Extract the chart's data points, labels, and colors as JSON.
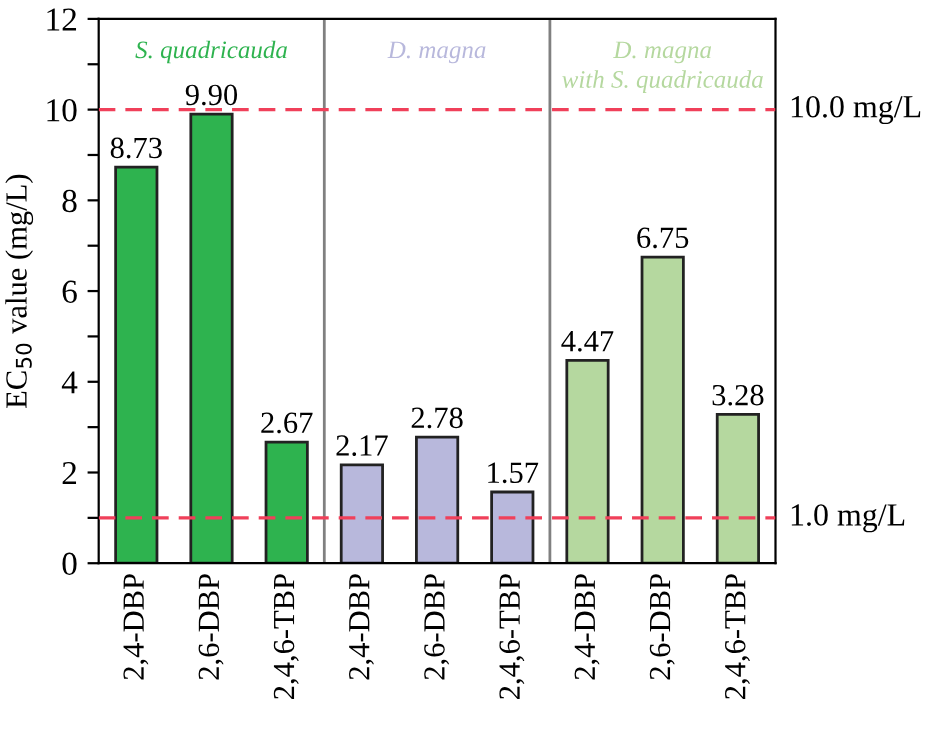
{
  "chart_data": {
    "type": "bar",
    "ylabel": "EC$_{50}$ value (mg/L)",
    "categories": [
      "2,4-DBP",
      "2,6-DBP",
      "2,4,6-TBP",
      "2,4-DBP",
      "2,6-DBP",
      "2,4,6-TBP",
      "2,4-DBP",
      "2,6-DBP",
      "2,4,6-TBP"
    ],
    "values": [
      8.73,
      9.9,
      2.67,
      2.17,
      2.78,
      1.57,
      4.47,
      6.75,
      3.28
    ],
    "value_labels": [
      "8.73",
      "9.90",
      "2.67",
      "2.17",
      "2.78",
      "1.57",
      "4.47",
      "6.75",
      "3.28"
    ],
    "colors": [
      "#2eb34f",
      "#2eb34f",
      "#2eb34f",
      "#b8b8dc",
      "#b8b8dc",
      "#b8b8dc",
      "#b5d89f",
      "#b5d89f",
      "#b5d89f"
    ],
    "ylim": [
      0,
      12
    ],
    "yticks": [
      0,
      {
        "value": 1,
        "label": null
      },
      2,
      {
        "value": 3,
        "label": null
      },
      4,
      {
        "value": 5,
        "label": null
      },
      6,
      {
        "value": 7,
        "label": null
      },
      8,
      {
        "value": 9,
        "label": null
      },
      10,
      {
        "value": 11,
        "label": null
      },
      12
    ],
    "ref_lines": [
      {
        "axis": "y",
        "value": 10,
        "label": "10.0 mg/L",
        "color": "#f0405a",
        "line_style": "dashed"
      },
      {
        "axis": "y",
        "value": 1,
        "label": "1.0 mg/L",
        "color": "#f0405a",
        "line_style": "dashed"
      }
    ],
    "annotations": [
      "S. quadricauda",
      "D. magna",
      "D. magna\nwith S. quadricauda"
    ],
    "grid": false,
    "legend": false
  }
}
